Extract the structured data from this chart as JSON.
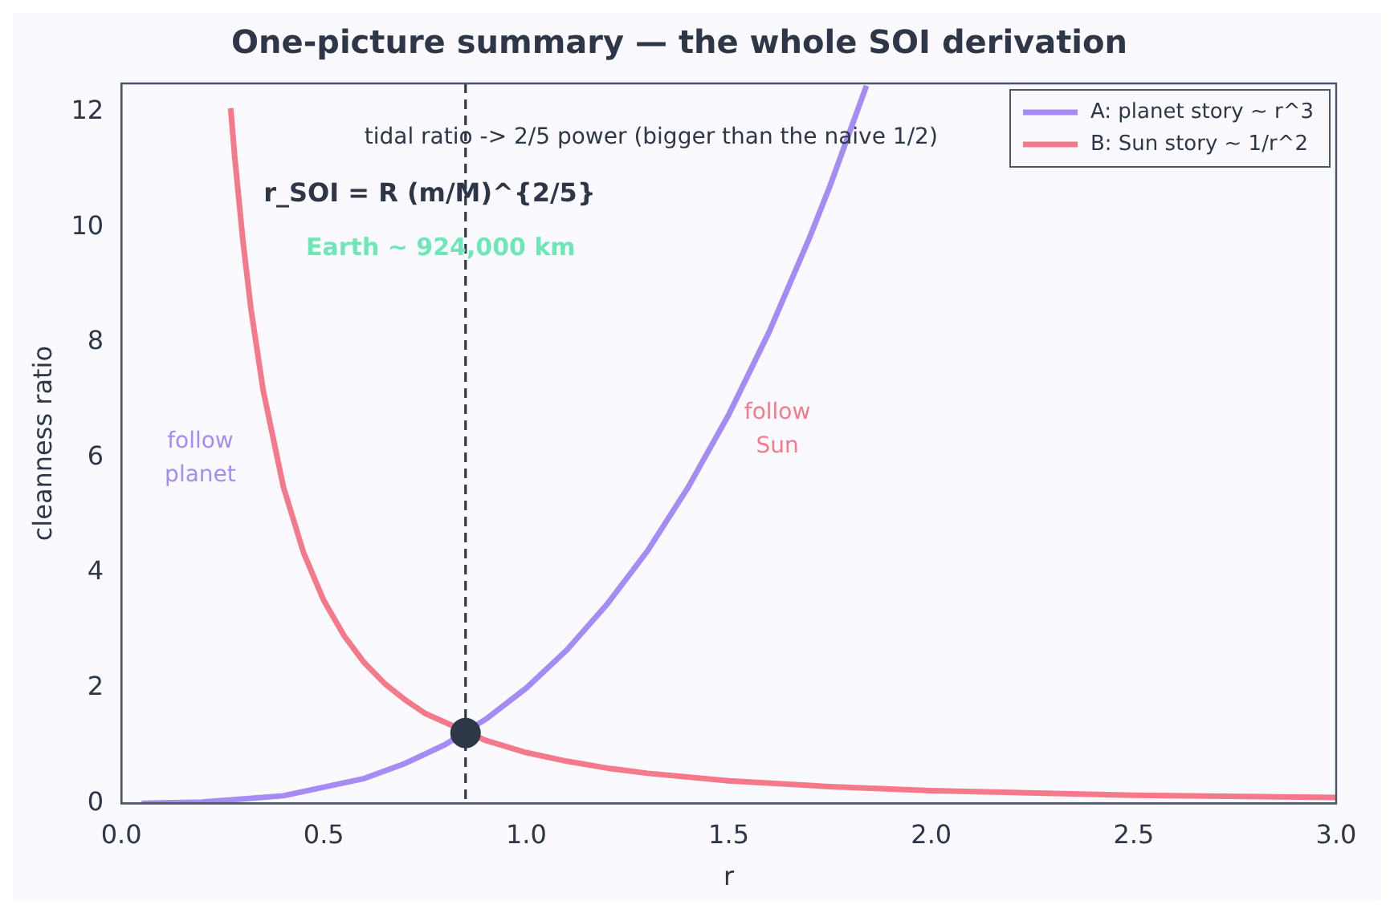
{
  "chart_data": {
    "type": "line",
    "title": "One-picture summary — the whole SOI derivation",
    "xlabel": "r",
    "ylabel": "cleanness ratio",
    "xlim": [
      0,
      3
    ],
    "ylim": [
      0,
      12.5
    ],
    "xticks": [
      {
        "value": 0,
        "label": "0.0"
      },
      {
        "value": 0.5,
        "label": "0.5"
      },
      {
        "value": 1,
        "label": "1.0"
      },
      {
        "value": 1.5,
        "label": "1.5"
      },
      {
        "value": 2,
        "label": "2.0"
      },
      {
        "value": 2.5,
        "label": "2.5"
      },
      {
        "value": 3,
        "label": "3.0"
      }
    ],
    "yticks": [
      0,
      2,
      4,
      6,
      8,
      10,
      12
    ],
    "grid": false,
    "legend": "top right",
    "line_style": "solid",
    "marker": "none",
    "series": [
      {
        "name": "A: planet story ~ r^3",
        "color": "#a48cf4",
        "x": [
          0.05,
          0.2,
          0.4,
          0.6,
          0.7,
          0.8,
          0.9,
          1.0,
          1.1,
          1.2,
          1.3,
          1.4,
          1.5,
          1.6,
          1.7,
          1.75,
          1.84
        ],
        "values": [
          0,
          0.02,
          0.13,
          0.43,
          0.69,
          1.02,
          1.46,
          2,
          2.66,
          3.46,
          4.39,
          5.49,
          6.75,
          8.19,
          9.83,
          10.72,
          12.46
        ]
      },
      {
        "name": "B: Sun story ~ 1/r^2",
        "color": "#f47a8b",
        "x": [
          0.27,
          0.28,
          0.3,
          0.32,
          0.35,
          0.4,
          0.45,
          0.5,
          0.55,
          0.6,
          0.65,
          0.7,
          0.75,
          0.9,
          1.0,
          1.1,
          1.2,
          1.3,
          1.5,
          1.75,
          2.0,
          2.5,
          3.0
        ],
        "values": [
          12.07,
          11.22,
          9.78,
          8.59,
          7.18,
          5.5,
          4.35,
          3.52,
          2.91,
          2.44,
          2.08,
          1.8,
          1.56,
          1.09,
          0.88,
          0.73,
          0.61,
          0.52,
          0.39,
          0.29,
          0.22,
          0.14,
          0.1
        ]
      },
      {
        "type": "scatter",
        "color": "#2d3748",
        "marker": "circle",
        "x": [
          0.85
        ],
        "values": [
          1.22
        ]
      }
    ],
    "ref_lines": [
      {
        "axis": "x",
        "value": 0.85,
        "color": "#2d3748",
        "line_style": "dashed"
      }
    ],
    "annotations": [
      "tidal ratio -> 2/5 power (bigger than the naive 1/2)",
      "r_SOI = R (m/M)^{2/5}",
      "Earth ~ 924,000 km",
      "follow\nplanet",
      "follow\nSun"
    ]
  }
}
